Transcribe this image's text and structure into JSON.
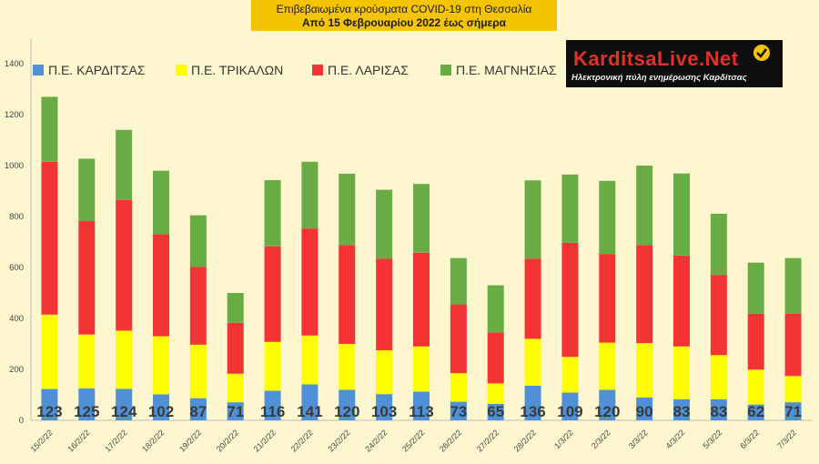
{
  "header": {
    "title": "Επιβεβαιωμένα κρούσματα COVID-19 στη Θεσσαλία",
    "subtitle": "Από 15 Φεβρουαρίου 2022 έως σήμερα"
  },
  "logo": {
    "brand": "KarditsaLive.Net",
    "tagline": "Ηλεκτρονική πύλη ενημέρωσης Καρδίτσας",
    "icon": "checkmark-icon"
  },
  "chart_data": {
    "type": "bar",
    "stacked": true,
    "categories": [
      "15/2/22",
      "16/2/22",
      "17/2/22",
      "18/2/22",
      "19/2/22",
      "20/2/22",
      "21/2/22",
      "22/2/22",
      "23/2/22",
      "24/2/22",
      "25/2/22",
      "26/2/22",
      "27/2/22",
      "28/2/22",
      "1/3/22",
      "2/3/22",
      "3/3/22",
      "4/3/22",
      "5/3/22",
      "6/3/22",
      "7/3/22"
    ],
    "series": [
      {
        "name": "Π.Ε. ΚΑΡΔΙΤΣΑΣ",
        "color": "#4f90d6",
        "values": [
          123,
          125,
          124,
          102,
          87,
          71,
          116,
          141,
          120,
          103,
          113,
          73,
          65,
          136,
          109,
          120,
          90,
          83,
          83,
          62,
          71
        ]
      },
      {
        "name": "Π.Ε. ΤΡΙΚΑΛΩΝ",
        "color": "#ffff00",
        "values": [
          292,
          212,
          228,
          228,
          210,
          112,
          192,
          192,
          180,
          172,
          177,
          112,
          80,
          184,
          140,
          185,
          213,
          207,
          173,
          137,
          103
        ]
      },
      {
        "name": "Π.Ε. ΛΑΡΙΣΑΣ",
        "color": "#f43434",
        "values": [
          600,
          445,
          513,
          400,
          305,
          200,
          375,
          420,
          388,
          360,
          368,
          270,
          200,
          315,
          448,
          348,
          385,
          357,
          315,
          220,
          245
        ]
      },
      {
        "name": "Π.Ε. ΜΑΓΝΗΣΙΑΣ",
        "color": "#6aac44",
        "values": [
          255,
          245,
          275,
          250,
          203,
          117,
          260,
          262,
          280,
          270,
          270,
          182,
          185,
          307,
          268,
          287,
          312,
          322,
          240,
          200,
          218
        ]
      }
    ],
    "data_labels_series": "Π.Ε. ΚΑΡΔΙΤΣΑΣ",
    "ylim": [
      0,
      1500
    ],
    "yticks": [
      0,
      200,
      400,
      600,
      800,
      1000,
      1200,
      1400
    ],
    "xlabel": "",
    "ylabel": "",
    "grid": false,
    "legend_position": "top-left"
  }
}
